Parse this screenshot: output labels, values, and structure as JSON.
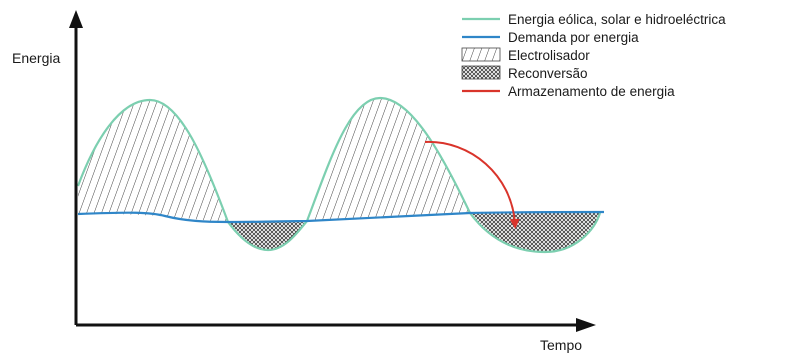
{
  "axes": {
    "y_label": "Energia",
    "x_label": "Tempo"
  },
  "legend": {
    "renewable": "Energia eólica, solar e hidroeléctrica",
    "demand": "Demanda por energia",
    "electrolyser": "Electrolisador",
    "reconversion": "Reconversão",
    "storage": "Armazenamento de energia"
  },
  "colors": {
    "renewable": "#7ccfb0",
    "demand": "#2f86c8",
    "storage": "#d9342b",
    "axis": "#111111",
    "hatch": "#444444"
  }
}
